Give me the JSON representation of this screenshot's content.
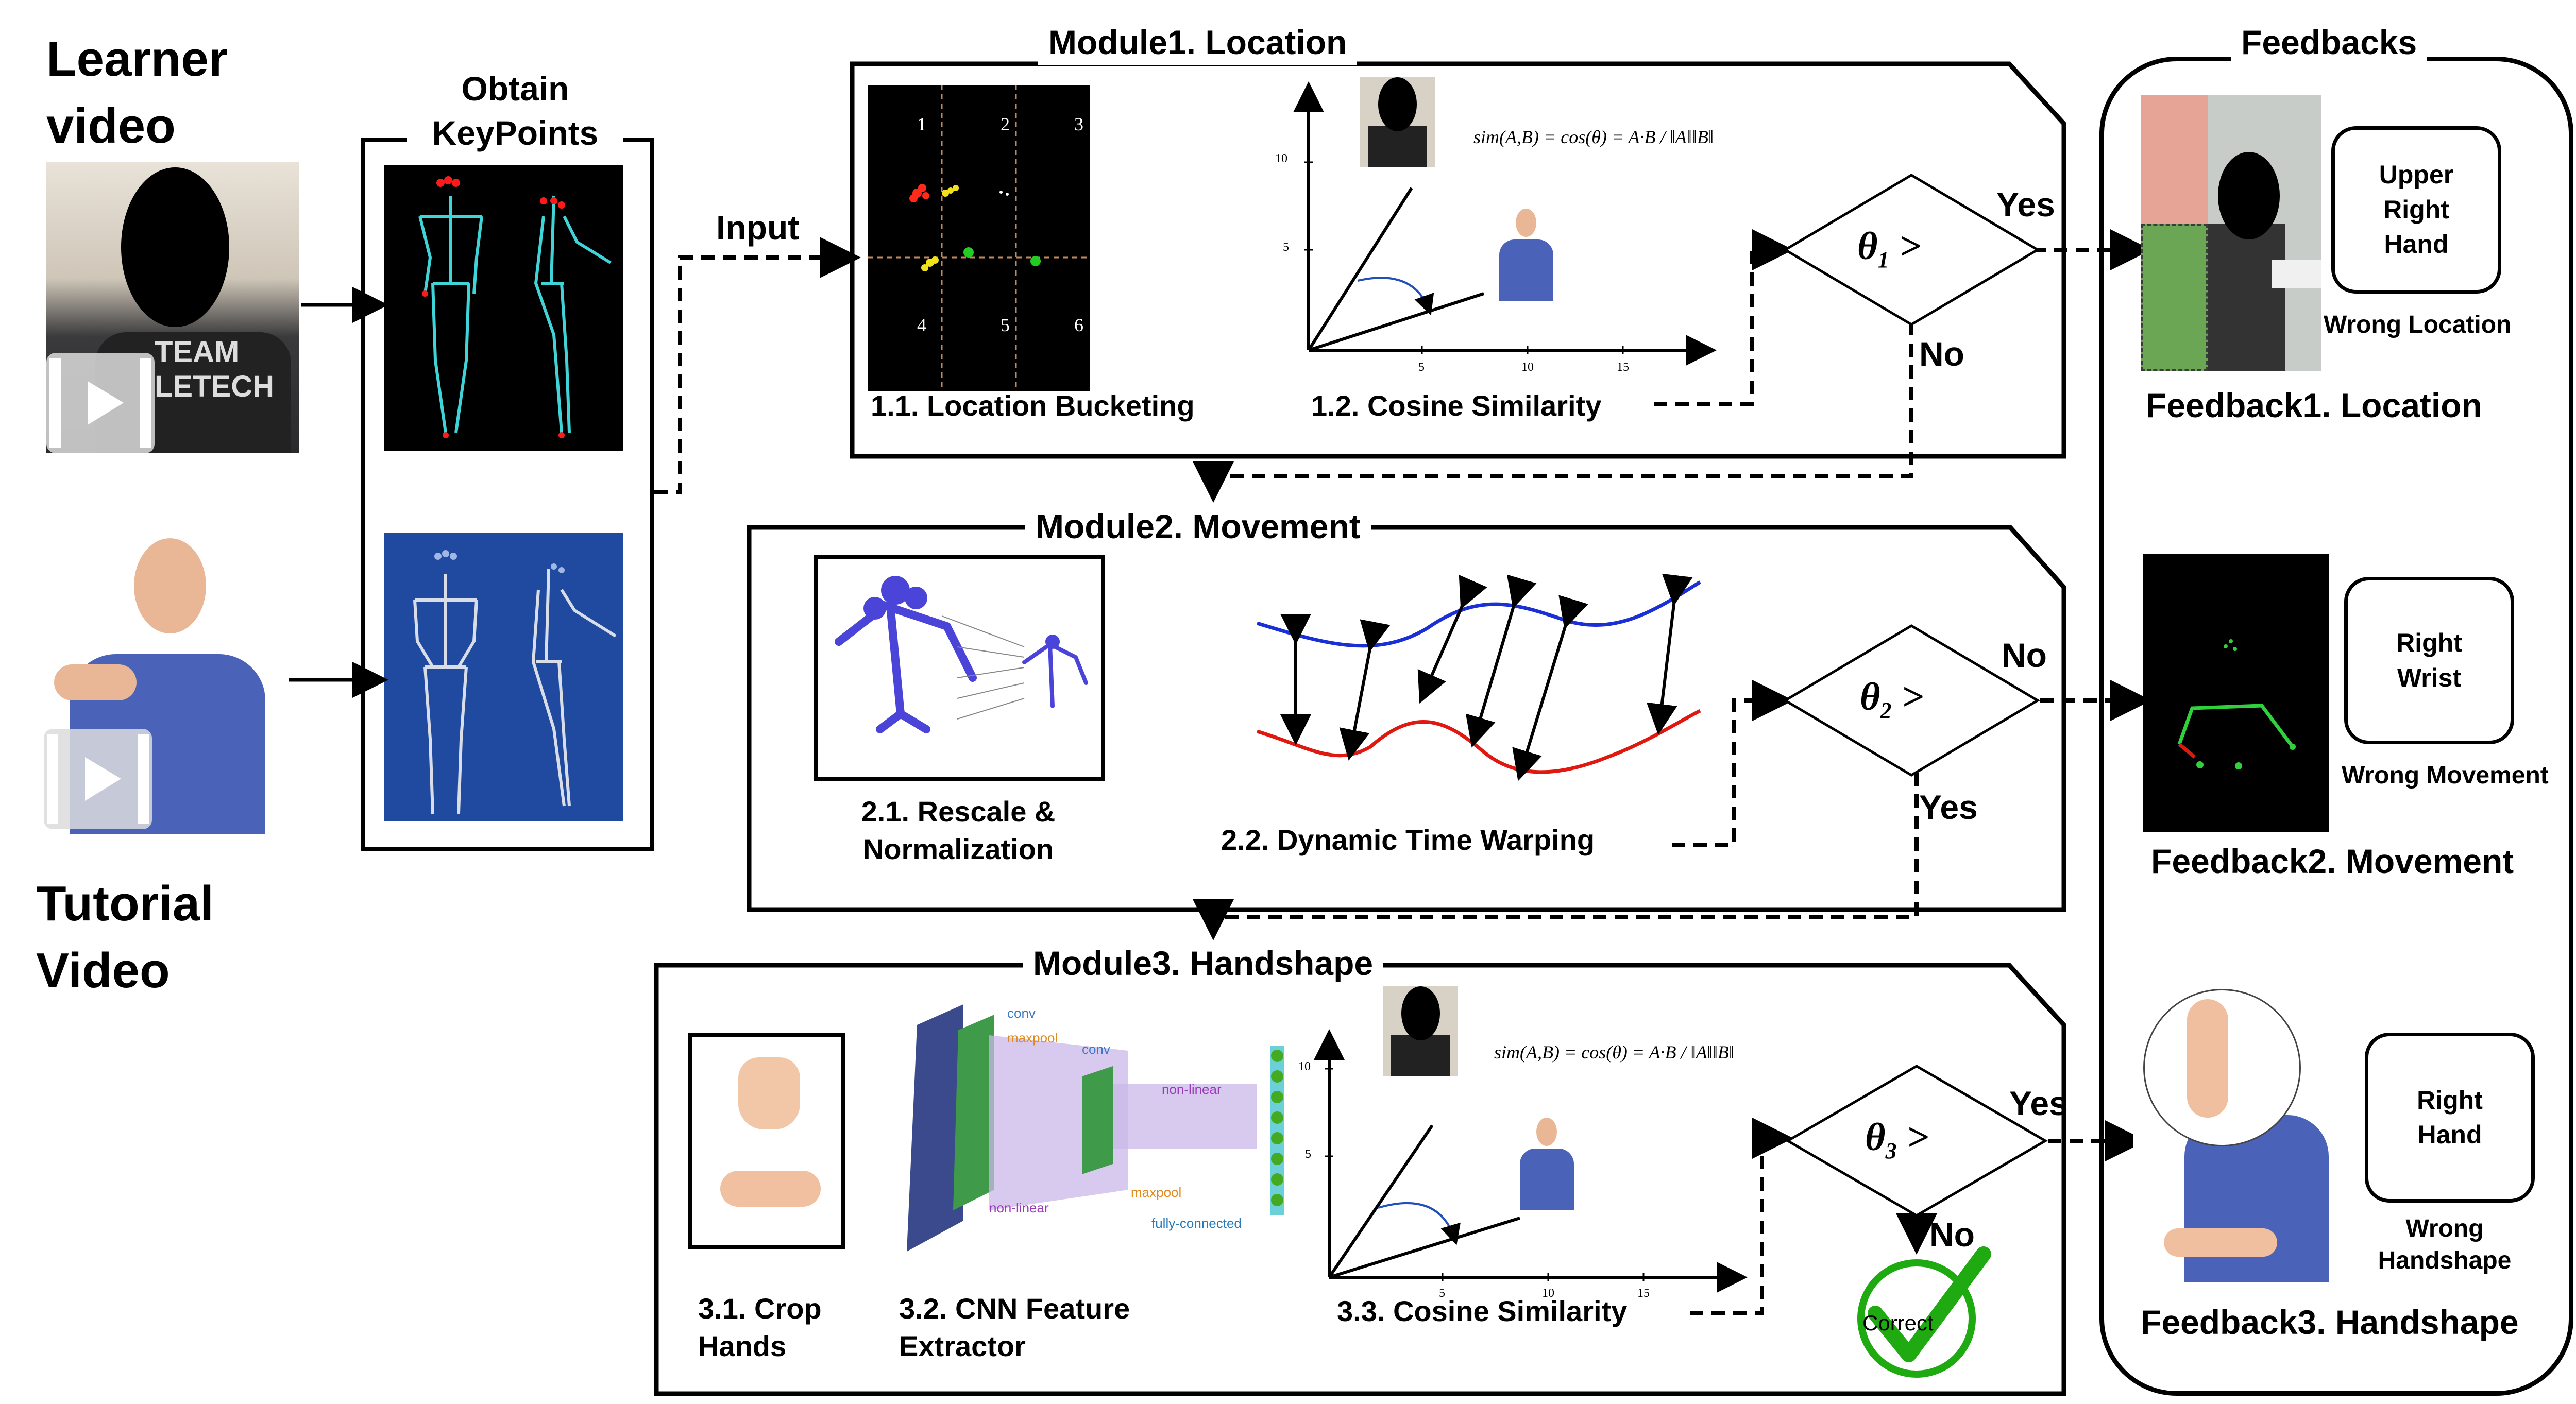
{
  "learner_label": "Learner\nvideo",
  "tutorial_label": "Tutorial\nVideo",
  "keypoints_title": "Obtain\nKeyPoints",
  "input_label": "Input",
  "module1": {
    "title": "Module1. Location",
    "sub1": "1.1. Location Bucketing",
    "sub2": "1.2. Cosine Similarity",
    "grid_numbers": [
      "1",
      "2",
      "3",
      "4",
      "5",
      "6"
    ],
    "theta": "θ",
    "theta_sub": "1",
    "yes": "Yes",
    "no": "No",
    "formula": "sim(A,B) = cos(θ) = A·B / ‖A‖‖B‖",
    "ticks_y": [
      "10",
      "5"
    ],
    "ticks_x": [
      "5",
      "10",
      "15"
    ]
  },
  "module2": {
    "title": "Module2. Movement",
    "sub1": "2.1. Rescale &\nNormalization",
    "sub2": "2.2. Dynamic Time Warping",
    "theta": "θ",
    "theta_sub": "2",
    "yes": "Yes",
    "no": "No"
  },
  "module3": {
    "title": "Module3. Handshape",
    "sub1": "3.1. Crop\nHands",
    "sub2": "3.2. CNN Feature\nExtractor",
    "sub3": "3.3. Cosine Similarity",
    "theta": "θ",
    "theta_sub": "3",
    "yes": "Yes",
    "no": "No",
    "correct": "Correct",
    "formula": "sim(A,B) = cos(θ) = A·B / ‖A‖‖B‖",
    "cnn_labels": [
      "conv",
      "maxpool",
      "conv",
      "non-linear",
      "non-linear",
      "maxpool",
      "fully-connected"
    ],
    "ticks_y": [
      "10",
      "5"
    ],
    "ticks_x": [
      "5",
      "10",
      "15"
    ]
  },
  "feedbacks": {
    "title": "Feedbacks",
    "f1": {
      "box": "Upper\nRight\nHand",
      "caption": "Wrong Location",
      "title": "Feedback1. Location"
    },
    "f2": {
      "box": "Right\nWrist",
      "caption": "Wrong Movement",
      "title": "Feedback2. Movement"
    },
    "f3": {
      "box": "Right\nHand",
      "caption": "Wrong\nHandshape",
      "title": "Feedback3. Handshape"
    }
  },
  "colors": {
    "skeleton_cyan": "#3fd4d8",
    "skeleton_bg_blue": "#1f4aa0",
    "dtw_blue": "#1a2fd6",
    "dtw_red": "#e0180f",
    "check_green": "#1faa12",
    "feedback_green": "#2fd23a"
  }
}
